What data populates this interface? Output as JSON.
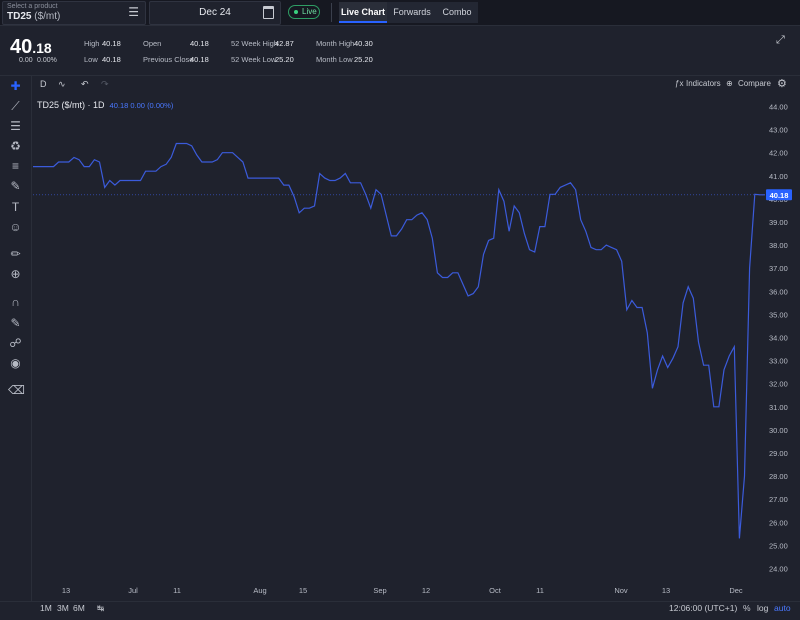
{
  "header": {
    "product_hint": "Select a product",
    "product_name": "TD25",
    "product_unit": "($/mt)",
    "date": "Dec 24",
    "live_label": "Live",
    "tabs": [
      {
        "label": "Live Chart",
        "active": true
      },
      {
        "label": "Forwards",
        "active": false
      },
      {
        "label": "Combo",
        "active": false
      }
    ]
  },
  "quote": {
    "price_main": "40",
    "price_frac": ".18",
    "change": "0.00",
    "change_pct": "0.00%",
    "stats": {
      "high_label": "High",
      "high": "40.18",
      "low_label": "Low",
      "low": "40.18",
      "open_label": "Open",
      "open": "40.18",
      "prev_close_label": "Previous Close",
      "prev_close": "40.18",
      "w52_high_label": "52 Week High",
      "w52_high": "42.87",
      "w52_low_label": "52 Week Low",
      "w52_low": "25.20",
      "month_high_label": "Month High",
      "month_high": "40.30",
      "month_low_label": "Month Low",
      "month_low": "25.20"
    }
  },
  "toolbar": {
    "interval": "D",
    "indicators_label": "Indicators",
    "compare_label": "Compare"
  },
  "legend": {
    "symbol": "TD25 ($/mt) · 1D",
    "values": "40.18 0.00 (0.00%)"
  },
  "bottom": {
    "ranges": [
      "1M",
      "3M",
      "6M"
    ],
    "time": "12:06:00 (UTC+1)",
    "pct_label": "%",
    "log_label": "log",
    "auto_label": "auto"
  },
  "colors": {
    "line": "#3b5bdb",
    "accent": "#2962ff",
    "background": "#1f222d"
  },
  "chart_data": {
    "type": "line",
    "ylim": [
      23.5,
      44.5
    ],
    "yticks": [
      24,
      25,
      26,
      27,
      28,
      29,
      30,
      31,
      32,
      33,
      34,
      35,
      36,
      37,
      38,
      39,
      40,
      41,
      42,
      43,
      44
    ],
    "ytick_labels": [
      "24.00",
      "25.00",
      "26.00",
      "27.00",
      "28.00",
      "29.00",
      "30.00",
      "31.00",
      "32.00",
      "33.00",
      "34.00",
      "35.00",
      "36.00",
      "37.00",
      "38.00",
      "39.00",
      "40.00",
      "41.00",
      "42.00",
      "43.00",
      "44.00"
    ],
    "xticks": [
      "13",
      "Jul",
      "11",
      "Aug",
      "15",
      "Sep",
      "12",
      "Oct",
      "11",
      "Nov",
      "13",
      "Dec"
    ],
    "last_value": 40.18,
    "last_label": "40.18",
    "series": [
      {
        "values": [
          41.4,
          41.4,
          41.4,
          41.4,
          41.4,
          41.6,
          41.6,
          41.6,
          41.8,
          41.7,
          41.4,
          41.4,
          41.7,
          41.6,
          40.5,
          40.8,
          40.6,
          40.8,
          40.8,
          40.8,
          40.8,
          40.8,
          41.2,
          41.2,
          41.2,
          41.4,
          41.5,
          41.8,
          42.4,
          42.4,
          42.4,
          42.3,
          41.9,
          41.6,
          41.6,
          41.6,
          41.7,
          42.0,
          42.0,
          42.0,
          41.8,
          41.6,
          40.9,
          40.9,
          40.9,
          40.9,
          40.9,
          40.9,
          40.9,
          40.6,
          40.6,
          40.1,
          39.4,
          39.6,
          39.6,
          39.7,
          41.1,
          40.9,
          40.8,
          40.8,
          40.9,
          41.1,
          40.7,
          40.7,
          40.7,
          40.2,
          39.6,
          40.4,
          40.2,
          39.3,
          38.4,
          38.4,
          38.7,
          39.1,
          39.1,
          39.3,
          39.4,
          39.1,
          38.3,
          36.8,
          36.6,
          36.6,
          36.8,
          36.8,
          36.3,
          35.8,
          35.9,
          36.2,
          37.6,
          38.2,
          38.3,
          40.4,
          39.9,
          38.6,
          39.7,
          39.4,
          38.5,
          37.8,
          37.7,
          38.8,
          38.8,
          40.2,
          40.2,
          40.5,
          40.6,
          40.7,
          40.4,
          39.1,
          38.6,
          37.9,
          37.8,
          37.8,
          38.0,
          37.9,
          37.8,
          37.3,
          35.2,
          35.6,
          35.3,
          35.3,
          34.2,
          31.8,
          32.6,
          33.2,
          32.7,
          33.1,
          33.6,
          35.5,
          36.2,
          35.7,
          33.8,
          32.8,
          32.8,
          31.0,
          31.0,
          32.6,
          33.2,
          33.6,
          25.3,
          28.0,
          37.0,
          40.2,
          40.18,
          40.18
        ]
      }
    ]
  }
}
